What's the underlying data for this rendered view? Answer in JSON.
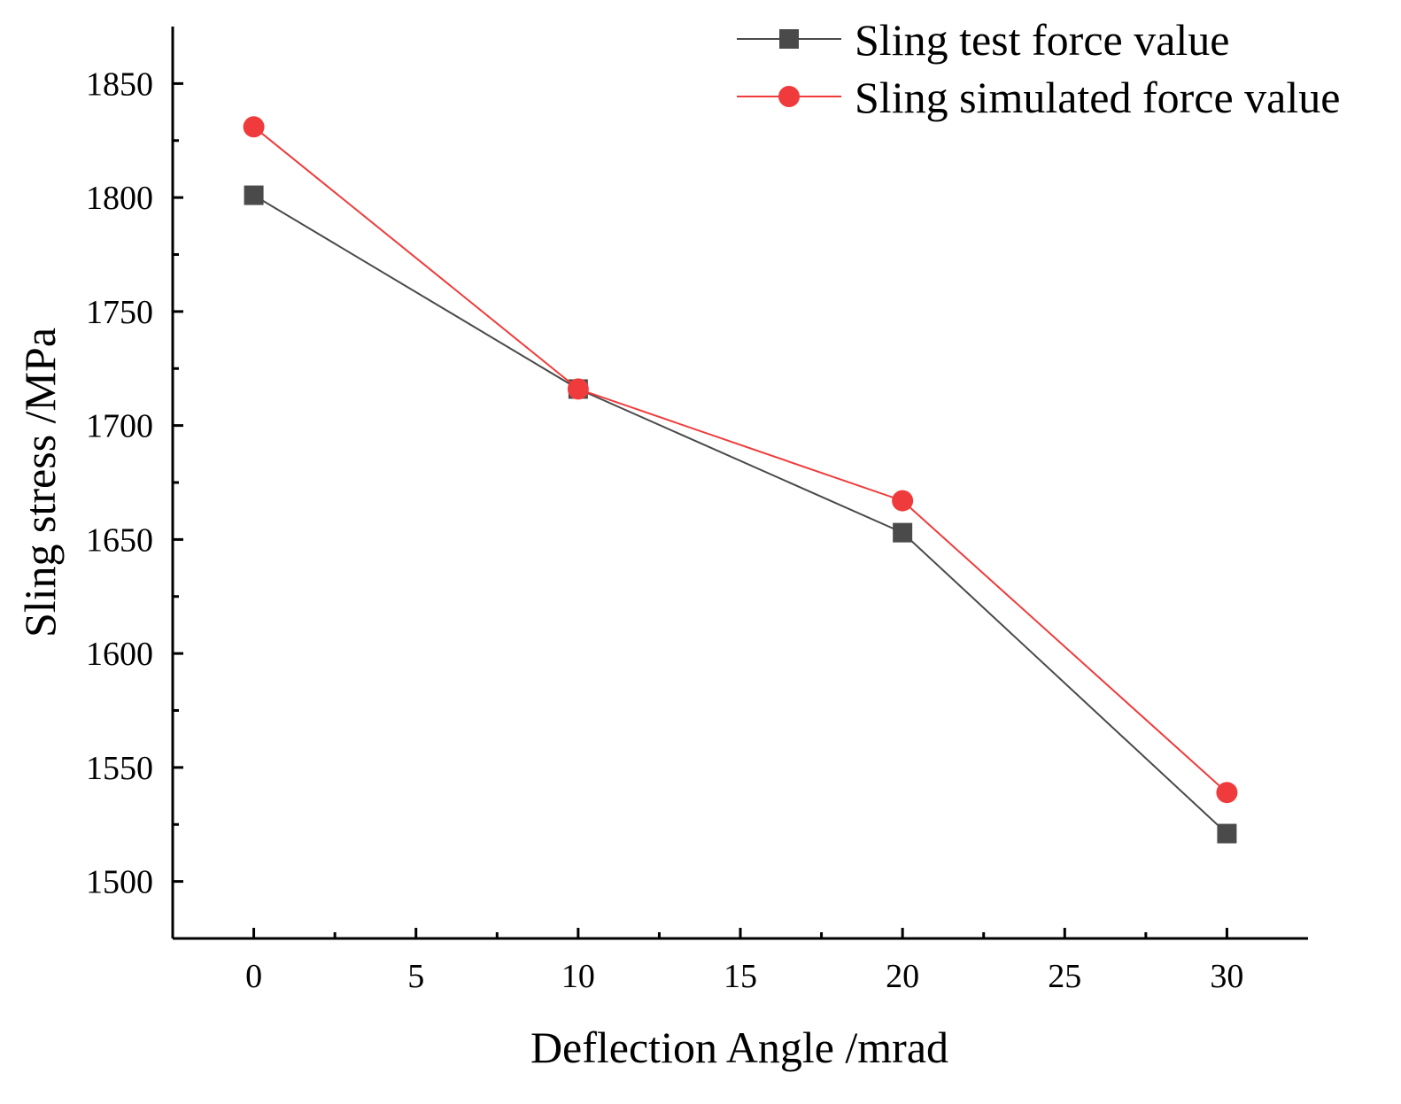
{
  "chart_data": {
    "type": "line",
    "title": "",
    "xlabel": "Deflection Angle /mrad",
    "ylabel": "Sling stress /MPa",
    "x": [
      0,
      10,
      20,
      30
    ],
    "xlim": [
      -2.5,
      32.5
    ],
    "ylim": [
      1475,
      1875
    ],
    "xticks": [
      0,
      5,
      10,
      15,
      20,
      25,
      30
    ],
    "xtick_labels": [
      "0",
      "5",
      "10",
      "15",
      "20",
      "25",
      "30"
    ],
    "yticks": [
      1500,
      1550,
      1600,
      1650,
      1700,
      1750,
      1800,
      1850
    ],
    "ytick_labels": [
      "1500",
      "1550",
      "1600",
      "1650",
      "1700",
      "1750",
      "1800",
      "1850"
    ],
    "grid": false,
    "legend_position": "top-right",
    "series": [
      {
        "name": "Sling test force value",
        "marker": "square",
        "color": "#4a4a4a",
        "values": [
          1801,
          1716,
          1653,
          1521
        ]
      },
      {
        "name": "Sling simulated force value",
        "marker": "circle",
        "color": "#ef3b3b",
        "values": [
          1831,
          1716,
          1667,
          1539
        ]
      }
    ]
  }
}
